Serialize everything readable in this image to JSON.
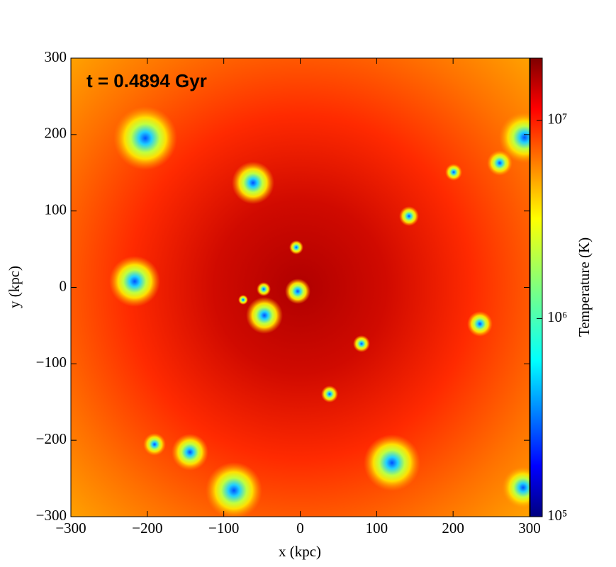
{
  "chart_data": {
    "type": "heatmap",
    "colormap": "jet",
    "annotation": "t = 0.4894 Gyr",
    "xlabel": "x  (kpc)",
    "ylabel": "y  (kpc)",
    "xlim": [
      -300,
      300
    ],
    "ylim": [
      -300,
      300
    ],
    "xticks": [
      {
        "value": -300,
        "label": "−300"
      },
      {
        "value": -200,
        "label": "−200"
      },
      {
        "value": -100,
        "label": "−100"
      },
      0,
      100,
      200,
      300
    ],
    "yticks": [
      {
        "value": -300,
        "label": "−300"
      },
      {
        "value": -200,
        "label": "−200"
      },
      {
        "value": -100,
        "label": "−100"
      },
      0,
      100,
      200,
      300
    ],
    "colorbar_label": "Temperature  (K)",
    "colorbar_log": true,
    "zlim": [
      100000,
      20600000
    ],
    "zticks": [
      {
        "value": 100000,
        "label": "10⁵"
      },
      {
        "value": 1000000,
        "label": "10⁶"
      },
      {
        "value": 10000000,
        "label": "10⁷"
      }
    ]
  }
}
